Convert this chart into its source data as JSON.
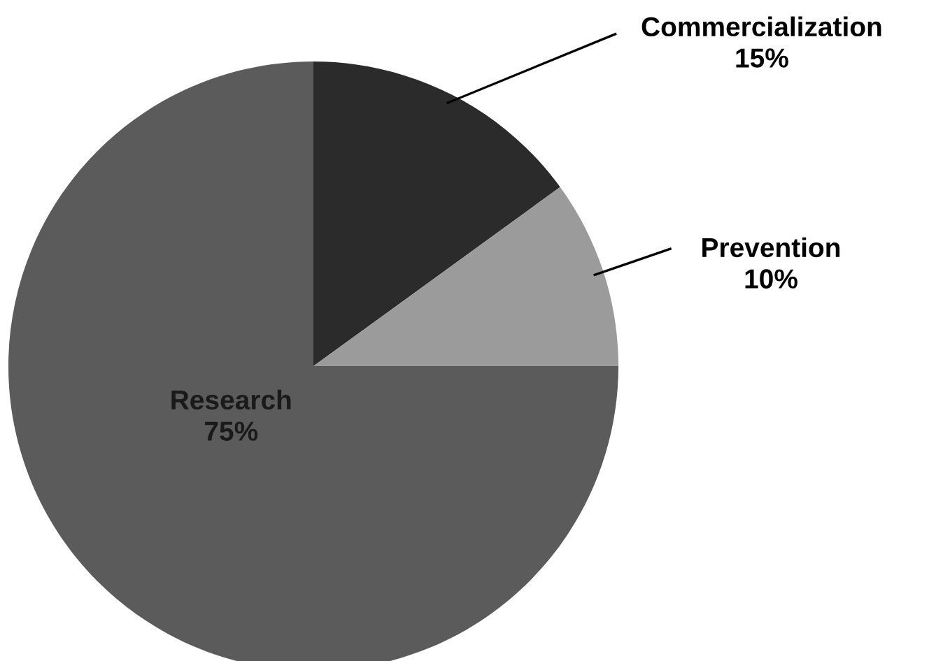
{
  "chart_data": {
    "type": "pie",
    "categories": [
      "Commercialization",
      "Prevention",
      "Research"
    ],
    "values": [
      15,
      10,
      75
    ],
    "value_labels": [
      "15%",
      "10%",
      "75%"
    ],
    "colors": [
      "#2b2b2b",
      "#9b9b9b",
      "#5b5b5b"
    ]
  }
}
